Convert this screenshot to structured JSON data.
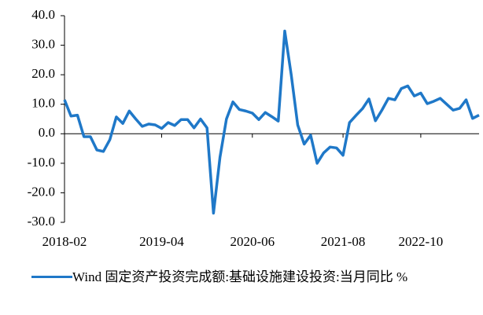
{
  "chart_data": {
    "type": "line",
    "categories": [
      "2018-02",
      null,
      null,
      null,
      null,
      null,
      null,
      null,
      null,
      null,
      null,
      null,
      null,
      null,
      null,
      "2019-04",
      null,
      null,
      null,
      null,
      null,
      null,
      null,
      null,
      null,
      null,
      null,
      null,
      null,
      "2020-06",
      null,
      null,
      null,
      null,
      null,
      null,
      null,
      null,
      null,
      null,
      null,
      null,
      null,
      "2021-08",
      null,
      null,
      null,
      null,
      null,
      null,
      null,
      null,
      null,
      null,
      null,
      "2022-10",
      null,
      null,
      null,
      null,
      null,
      null,
      null,
      null,
      null
    ],
    "series": [
      {
        "name": "Wind 固定资产投资完成额:基础设施建设投资:当月同比 %",
        "color": "#1f78c8",
        "values": [
          11.5,
          6,
          6.3,
          -1,
          -1,
          -5.5,
          -6,
          -2,
          5.7,
          3.5,
          7.7,
          5,
          2.5,
          3.3,
          3,
          1.8,
          3.8,
          2.8,
          4.8,
          4.8,
          2,
          5,
          2,
          -26.9,
          -8,
          5,
          10.8,
          8.2,
          7.7,
          7,
          4.8,
          7.2,
          5.8,
          4.3,
          34.8,
          20,
          3,
          -3.5,
          -0.5,
          -10,
          -6.5,
          -4.5,
          -4.8,
          -7.3,
          3.8,
          6.2,
          8.5,
          11.8,
          4.4,
          8,
          12,
          11.5,
          15.3,
          16.2,
          12.8,
          13.8,
          10.2,
          11,
          12,
          10,
          8,
          8.6,
          11.5,
          5.2,
          6.3
        ]
      }
    ],
    "ylim": [
      -30,
      40
    ],
    "yticks": [
      {
        "value": -30,
        "label": "-30.0"
      },
      {
        "value": -20,
        "label": "-20.0"
      },
      {
        "value": -10,
        "label": "-10.0"
      },
      {
        "value": 0,
        "label": "0.0"
      },
      {
        "value": 10,
        "label": "10.0"
      },
      {
        "value": 20,
        "label": "20.0"
      },
      {
        "value": 30,
        "label": "30.0"
      },
      {
        "value": 40,
        "label": "40.0"
      }
    ],
    "grid": false
  }
}
